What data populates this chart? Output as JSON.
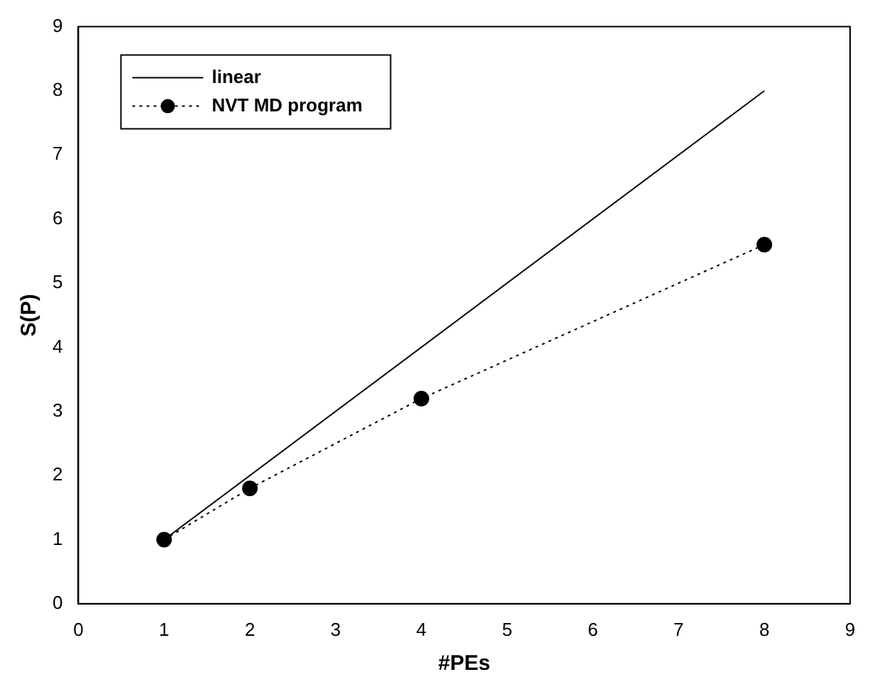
{
  "chart_data": {
    "type": "line",
    "xlabel": "#PEs",
    "ylabel": "S(P)",
    "xlim": [
      0,
      9
    ],
    "xticks": [
      0,
      1,
      2,
      3,
      4,
      5,
      6,
      7,
      8,
      9
    ],
    "ylim": [
      0,
      9
    ],
    "yticks": [
      0,
      1,
      2,
      3,
      4,
      5,
      6,
      7,
      8,
      9
    ],
    "grid": false,
    "legend": "top left",
    "series": [
      {
        "name": "linear",
        "color": "#000000",
        "x": [
          1,
          8
        ],
        "values": [
          1,
          8
        ],
        "line_style": "solid"
      },
      {
        "name": "NVT MD program",
        "color": "#000000",
        "x": [
          1,
          2,
          4,
          8
        ],
        "values": [
          1,
          1.8,
          3.2,
          5.6
        ],
        "marker": "circle",
        "line_style": "dotted"
      }
    ]
  }
}
